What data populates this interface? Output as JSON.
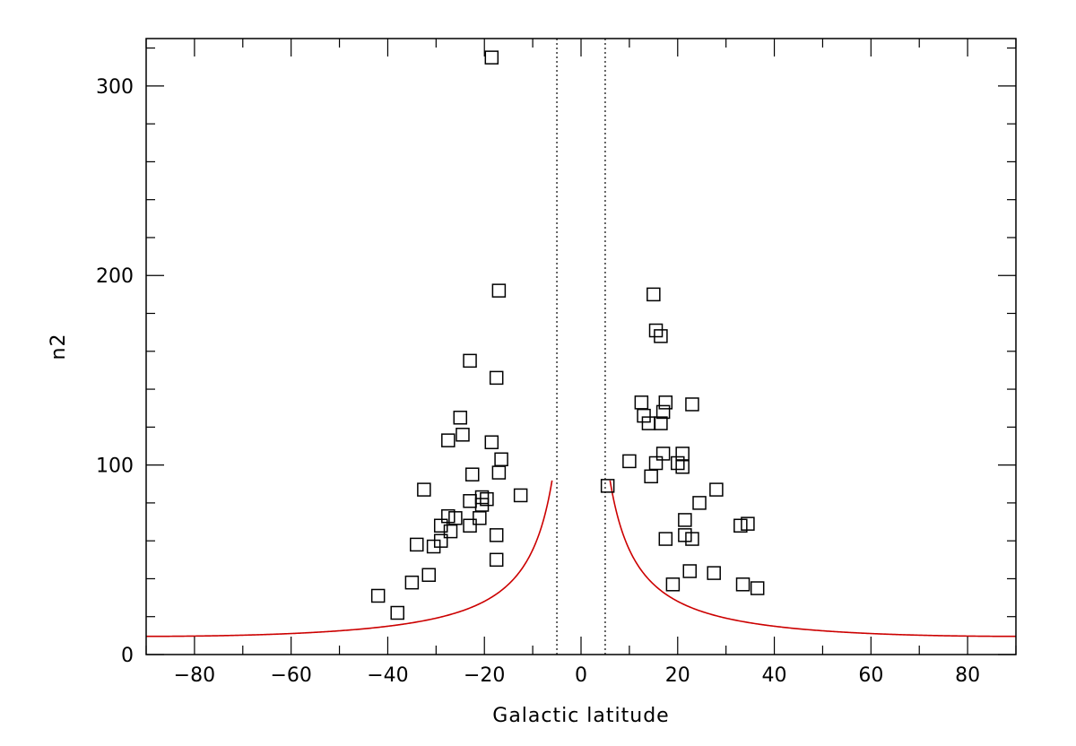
{
  "chart_data": {
    "type": "scatter",
    "title": "",
    "xlabel": "Galactic latitude",
    "ylabel": "n2",
    "xlim": [
      -90,
      90
    ],
    "ylim": [
      0,
      325
    ],
    "x_ticks": [
      -80,
      -60,
      -40,
      -20,
      0,
      20,
      40,
      60,
      80
    ],
    "y_ticks": [
      0,
      100,
      200,
      300
    ],
    "grid": false,
    "legend": "none",
    "marker": "open-square",
    "colors": {
      "points": "#000000",
      "curve": "#cc0000",
      "reference_lines": "#000000"
    },
    "reference_lines_x": [
      -5,
      5
    ],
    "points": [
      {
        "x": -18.5,
        "y": 315
      },
      {
        "x": -17,
        "y": 192
      },
      {
        "x": -23,
        "y": 155
      },
      {
        "x": -17.5,
        "y": 146
      },
      {
        "x": -25,
        "y": 125
      },
      {
        "x": -24.5,
        "y": 116
      },
      {
        "x": -27.5,
        "y": 113
      },
      {
        "x": -18.5,
        "y": 112
      },
      {
        "x": -16.5,
        "y": 103
      },
      {
        "x": -17,
        "y": 96
      },
      {
        "x": -22.5,
        "y": 95
      },
      {
        "x": -32.5,
        "y": 87
      },
      {
        "x": -12.5,
        "y": 84
      },
      {
        "x": -20.5,
        "y": 83
      },
      {
        "x": -19.5,
        "y": 82
      },
      {
        "x": -23,
        "y": 81
      },
      {
        "x": -20.5,
        "y": 79
      },
      {
        "x": -27.5,
        "y": 73
      },
      {
        "x": -26,
        "y": 72
      },
      {
        "x": -21,
        "y": 72
      },
      {
        "x": -29,
        "y": 68
      },
      {
        "x": -23,
        "y": 68
      },
      {
        "x": -27,
        "y": 65
      },
      {
        "x": -17.5,
        "y": 63
      },
      {
        "x": -29,
        "y": 60
      },
      {
        "x": -34,
        "y": 58
      },
      {
        "x": -30.5,
        "y": 57
      },
      {
        "x": -17.5,
        "y": 50
      },
      {
        "x": -31.5,
        "y": 42
      },
      {
        "x": -35,
        "y": 38
      },
      {
        "x": -42,
        "y": 31
      },
      {
        "x": -38,
        "y": 22
      },
      {
        "x": 5.5,
        "y": 89
      },
      {
        "x": 15,
        "y": 190
      },
      {
        "x": 15.5,
        "y": 171
      },
      {
        "x": 16.5,
        "y": 168
      },
      {
        "x": 12.5,
        "y": 133
      },
      {
        "x": 17.5,
        "y": 133
      },
      {
        "x": 23,
        "y": 132
      },
      {
        "x": 17,
        "y": 128
      },
      {
        "x": 13,
        "y": 126
      },
      {
        "x": 14,
        "y": 122
      },
      {
        "x": 16.5,
        "y": 122
      },
      {
        "x": 17,
        "y": 106
      },
      {
        "x": 21,
        "y": 106
      },
      {
        "x": 10,
        "y": 102
      },
      {
        "x": 15.5,
        "y": 101
      },
      {
        "x": 20,
        "y": 101
      },
      {
        "x": 21,
        "y": 99
      },
      {
        "x": 14.5,
        "y": 94
      },
      {
        "x": 28,
        "y": 87
      },
      {
        "x": 24.5,
        "y": 80
      },
      {
        "x": 21.5,
        "y": 71
      },
      {
        "x": 33,
        "y": 68
      },
      {
        "x": 34.5,
        "y": 69
      },
      {
        "x": 21.5,
        "y": 63
      },
      {
        "x": 17.5,
        "y": 61
      },
      {
        "x": 23,
        "y": 61
      },
      {
        "x": 22.5,
        "y": 44
      },
      {
        "x": 27.5,
        "y": 43
      },
      {
        "x": 19,
        "y": 37
      },
      {
        "x": 33.5,
        "y": 37
      },
      {
        "x": 36.5,
        "y": 35
      }
    ],
    "curve": {
      "formula": "n2 = 9.6 / sin(|b|)",
      "x_range_abs": [
        6,
        90
      ],
      "coefficient": 9.6
    }
  }
}
